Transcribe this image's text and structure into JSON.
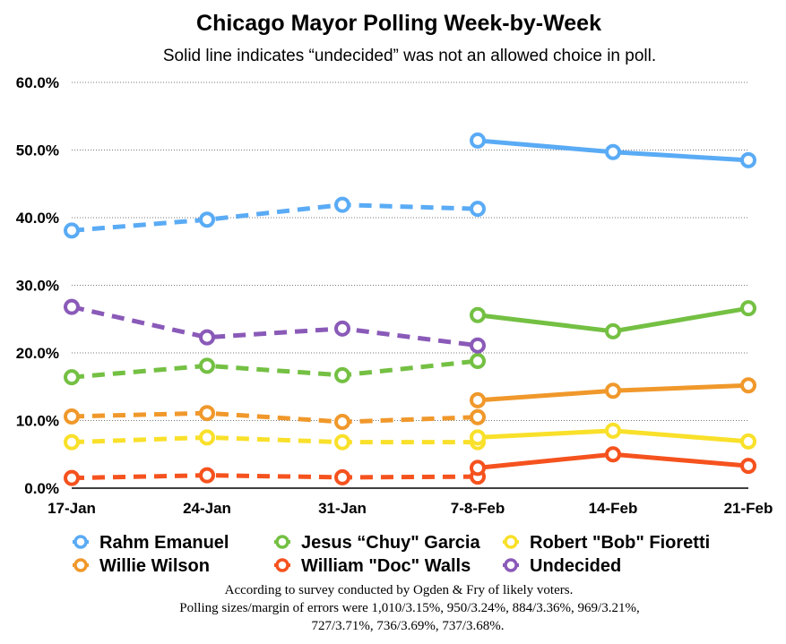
{
  "chart_data": {
    "type": "line",
    "title": "Chicago Mayor Polling Week-by-Week",
    "subtitle": "Solid line indicates “undecided” was not an allowed choice in poll.",
    "categories": [
      "17-Jan",
      "24-Jan",
      "31-Jan",
      "7-8-Feb",
      "14-Feb",
      "21-Feb"
    ],
    "yticks": [
      "0.0%",
      "10.0%",
      "20.0%",
      "30.0%",
      "40.0%",
      "50.0%",
      "60.0%"
    ],
    "ylim": [
      0,
      60
    ],
    "grid": "horizontal dotted",
    "legend_placement": "bottom",
    "series": [
      {
        "name": "Rahm Emanuel",
        "color": "#5aabf5",
        "dashed": [
          38.1,
          39.7,
          41.9,
          41.3,
          null,
          null
        ],
        "solid": [
          null,
          null,
          null,
          51.4,
          49.7,
          48.5
        ]
      },
      {
        "name": "Jesus “Chuy\" Garcia",
        "color": "#74c043",
        "dashed": [
          16.4,
          18.1,
          16.7,
          18.8,
          null,
          null
        ],
        "solid": [
          null,
          null,
          null,
          25.6,
          23.2,
          26.6
        ]
      },
      {
        "name": "Robert \"Bob\" Fioretti",
        "color": "#f9e02a",
        "dashed": [
          6.8,
          7.5,
          6.8,
          6.8,
          null,
          null
        ],
        "solid": [
          null,
          null,
          null,
          7.5,
          8.5,
          6.9
        ]
      },
      {
        "name": "Willie Wilson",
        "color": "#f0982b",
        "dashed": [
          10.6,
          11.1,
          9.8,
          10.5,
          null,
          null
        ],
        "solid": [
          null,
          null,
          null,
          13.0,
          14.4,
          15.2
        ]
      },
      {
        "name": "William \"Doc\" Walls",
        "color": "#f5521e",
        "dashed": [
          1.5,
          1.9,
          1.6,
          1.7,
          null,
          null
        ],
        "solid": [
          null,
          null,
          null,
          3.0,
          5.0,
          3.3
        ]
      },
      {
        "name": "Undecided",
        "color": "#8a5ab8",
        "dashed": [
          26.8,
          22.3,
          23.6,
          21.1,
          null,
          null
        ],
        "solid": [
          null,
          null,
          null,
          null,
          null,
          null
        ]
      }
    ],
    "notes": [
      "According to survey conducted by Ogden & Fry of likely voters.",
      "Polling sizes/margin of errors were  1,010/3.15%, 950/3.24%, 884/3.36%, 969/3.21%,",
      "727/3.71%, 736/3.69%, 737/3.68%."
    ]
  }
}
